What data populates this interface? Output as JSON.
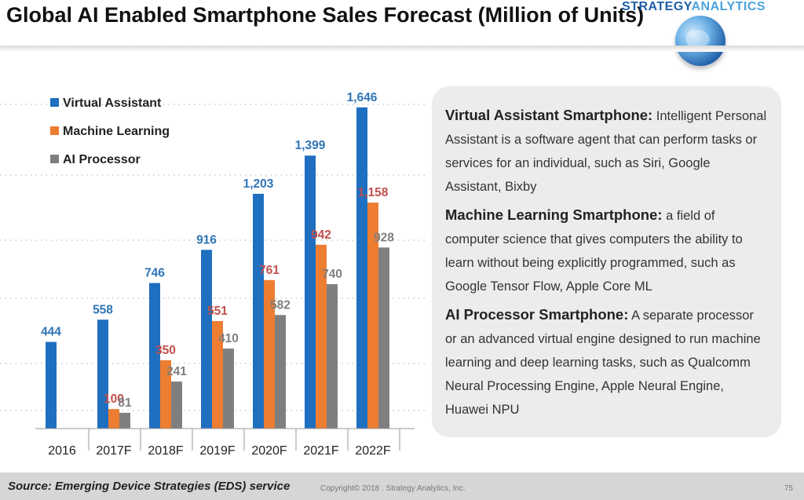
{
  "header": {
    "title": "Global AI Enabled Smartphone Sales Forecast (Million of Units)",
    "logo_part1": "STRATEGY",
    "logo_part2": "ANALYTICS"
  },
  "colors": {
    "virtual_assistant": "#1f6fc1",
    "machine_learning": "#ed7d31",
    "ai_processor": "#7f7f7f"
  },
  "chart_data": {
    "type": "bar",
    "categories": [
      "2016",
      "2017F",
      "2018F",
      "2019F",
      "2020F",
      "2021F",
      "2022F"
    ],
    "series": [
      {
        "name": "Virtual Assistant",
        "values": [
          444,
          558,
          746,
          916,
          1203,
          1399,
          1646
        ],
        "labels": [
          "444",
          "558",
          "746",
          "916",
          "1,203",
          "1,399",
          "1,646"
        ]
      },
      {
        "name": "Machine Learning",
        "values": [
          2,
          100,
          350,
          551,
          761,
          942,
          1158
        ],
        "labels": [
          "",
          "100",
          "350",
          "551",
          "761",
          "942",
          "1,158"
        ]
      },
      {
        "name": "AI Processor",
        "values": [
          0,
          81,
          241,
          410,
          582,
          740,
          928
        ],
        "labels": [
          "",
          "81",
          "241",
          "410",
          "582",
          "740",
          "928"
        ]
      }
    ],
    "legend": "top-left",
    "grid": true,
    "ylim": [
      0,
      1800
    ]
  },
  "info": [
    {
      "title": "Virtual Assistant Smartphone:",
      "text": "Intelligent Personal Assistant is a software agent that can perform tasks or services for an individual, such as Siri, Google Assistant, Bixby"
    },
    {
      "title": "Machine Learning Smartphone:",
      "text": "a field of computer science that gives computers the ability to learn without being explicitly programmed, such as Google Tensor Flow, Apple Core ML"
    },
    {
      "title": "AI Processor Smartphone:",
      "text": "A separate processor or an advanced virtual engine designed to run machine learning and deep learning tasks, such as Qualcomm Neural Processing Engine, Apple  Neural Engine, Huawei NPU"
    }
  ],
  "footer": {
    "source": "Source: Emerging Device Strategies (EDS) service",
    "copyright": "Copyright© 2018 . Strategy Analytics, Inc.",
    "page": "75"
  }
}
